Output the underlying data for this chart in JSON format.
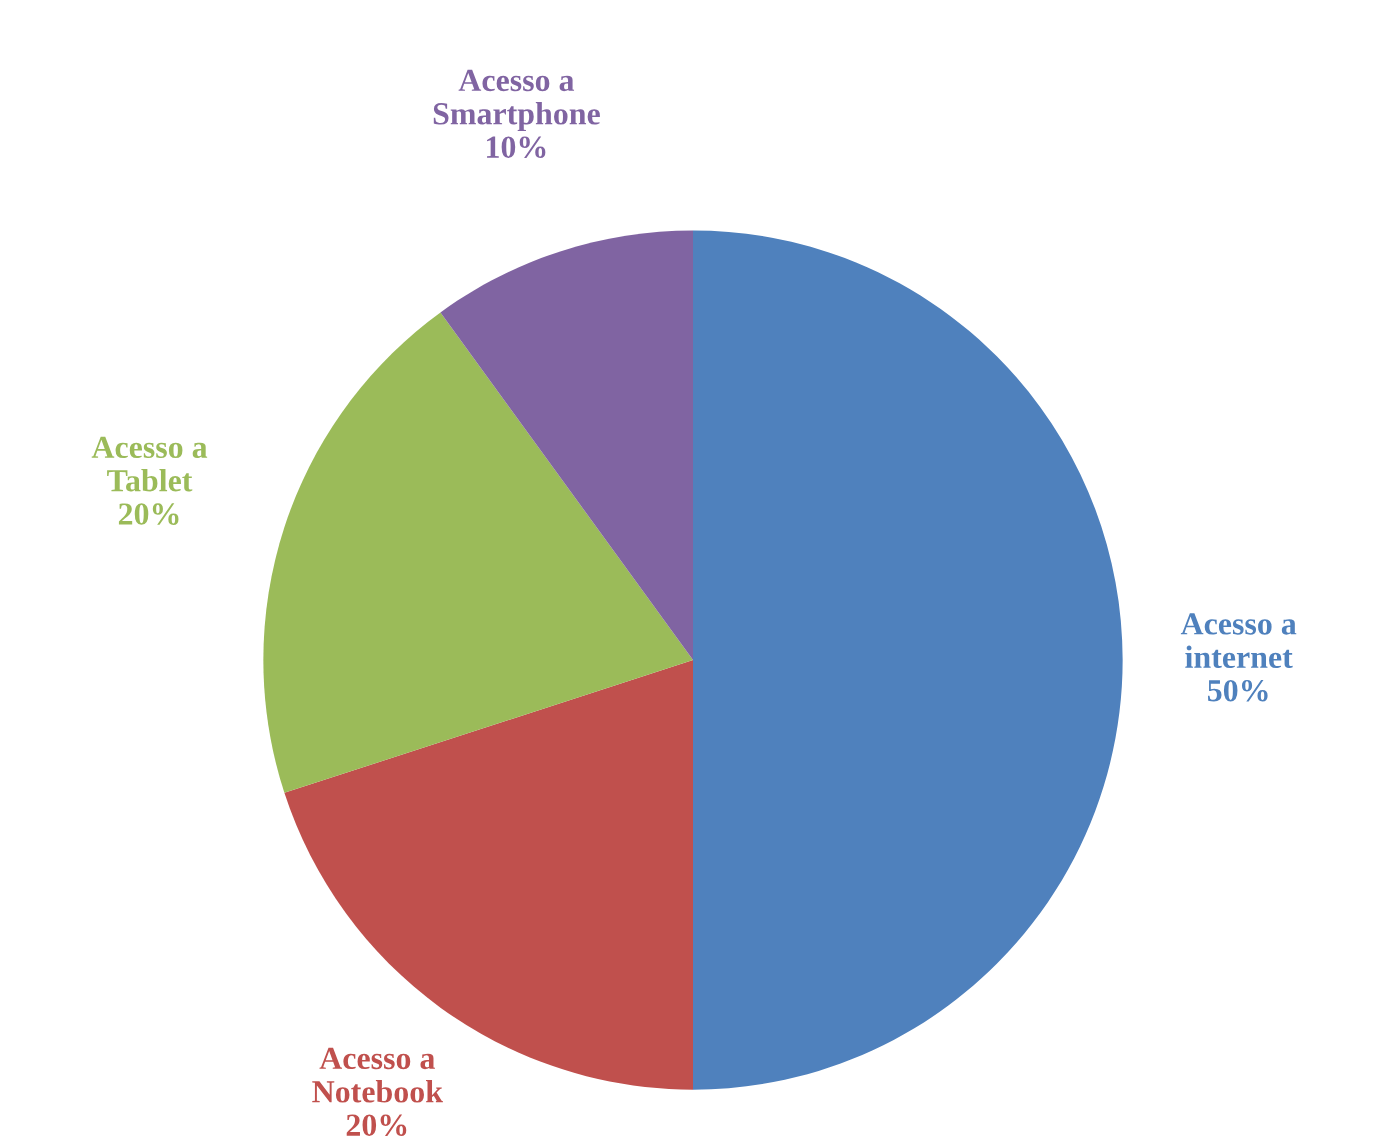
{
  "chart_data": {
    "type": "pie",
    "categories": [
      "Acesso a internet",
      "Acesso a Notebook",
      "Acesso a Tablet",
      "Acesso a Smartphone"
    ],
    "values": [
      50,
      20,
      20,
      10
    ],
    "colors": [
      "#4f81bd",
      "#c0504d",
      "#9bbb59",
      "#8064a2"
    ],
    "value_labels": [
      "50%",
      "20%",
      "20%",
      "10%"
    ],
    "legend": false
  }
}
